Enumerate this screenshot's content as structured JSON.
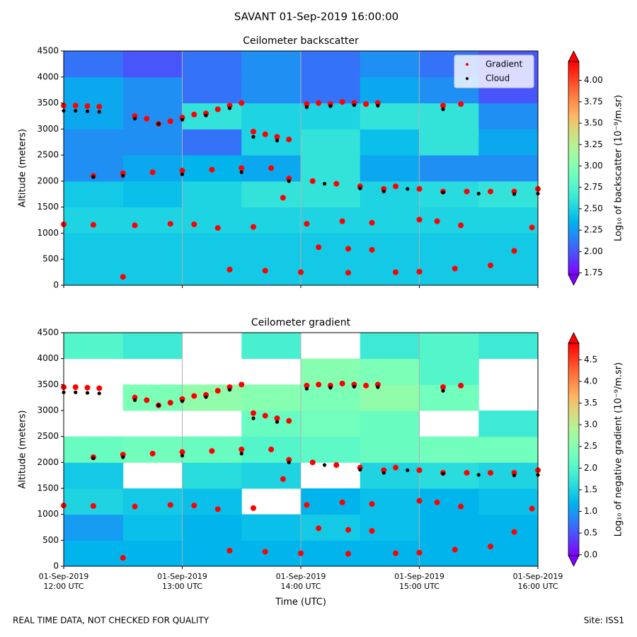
{
  "suptitle": "SAVANT 01-Sep-2019 16:00:00",
  "footer_left": "REAL TIME DATA, NOT CHECKED FOR QUALITY",
  "footer_right": "Site: ISS1",
  "chart_data": [
    {
      "type": "heatmap",
      "title": "Ceilometer backscatter",
      "ylabel": "Altitude (meters)",
      "colorbar_label": "Log₁₀ of backscatter (10⁻⁹/m.sr)",
      "xlim": [
        12,
        16
      ],
      "xticks": [
        12,
        13,
        14,
        15,
        16
      ],
      "ylim": [
        0,
        4500
      ],
      "yticks": [
        0,
        500,
        1000,
        1500,
        2000,
        2500,
        3000,
        3500,
        4000,
        4500
      ],
      "clim": [
        1.73,
        4.22
      ],
      "cticks": [
        {
          "value": 1.75,
          "label": "1.75"
        },
        {
          "value": 2.0,
          "label": "2.00"
        },
        {
          "value": 2.25,
          "label": "2.25"
        },
        {
          "value": 2.5,
          "label": "2.50"
        },
        {
          "value": 2.75,
          "label": "2.75"
        },
        {
          "value": 3.0,
          "label": "3.00"
        },
        {
          "value": 3.25,
          "label": "3.25"
        },
        {
          "value": 3.5,
          "label": "3.50"
        },
        {
          "value": 3.75,
          "label": "3.75"
        },
        {
          "value": 4.0,
          "label": "4.00"
        }
      ],
      "colormap": "rainbow",
      "legend": "upper right",
      "z_x": [
        12,
        12.5,
        13,
        13.5,
        14,
        14.5,
        15,
        15.5,
        16
      ],
      "z_y": [
        0,
        500,
        1000,
        1500,
        2000,
        2500,
        3000,
        3500,
        4000,
        4500
      ],
      "z": [
        [
          2.45,
          2.45,
          2.45,
          2.45,
          2.45,
          2.45,
          2.45,
          2.45
        ],
        [
          2.45,
          2.45,
          2.45,
          2.45,
          2.45,
          2.45,
          2.45,
          2.45
        ],
        [
          2.5,
          2.5,
          2.5,
          2.5,
          2.5,
          2.5,
          2.5,
          2.5
        ],
        [
          2.45,
          2.4,
          2.5,
          2.6,
          2.6,
          2.5,
          2.55,
          2.6
        ],
        [
          2.2,
          2.3,
          2.35,
          2.3,
          2.6,
          2.3,
          2.2,
          2.2
        ],
        [
          2.2,
          2.2,
          2.1,
          2.5,
          2.6,
          2.4,
          2.6,
          2.3
        ],
        [
          2.3,
          2.2,
          2.6,
          2.5,
          2.5,
          2.6,
          2.6,
          2.2
        ],
        [
          2.3,
          2.2,
          2.1,
          2.2,
          2.1,
          2.3,
          2.2,
          2.0
        ],
        [
          2.1,
          2.0,
          2.1,
          2.2,
          2.1,
          2.2,
          2.1,
          2.0
        ]
      ],
      "series": [
        {
          "name": "Gradient",
          "color": "#ff0000",
          "x": [
            12.0,
            12.1,
            12.2,
            12.3,
            12.6,
            12.7,
            12.8,
            12.9,
            13.0,
            13.1,
            13.2,
            13.3,
            13.4,
            13.5,
            13.6,
            13.7,
            13.8,
            13.9,
            14.05,
            14.15,
            14.25,
            14.35,
            14.45,
            14.55,
            14.65,
            15.2,
            15.35,
            12.25,
            12.5,
            12.75,
            13.0,
            13.25,
            13.5,
            13.75,
            13.9,
            14.1,
            14.3,
            14.5,
            14.7,
            14.8,
            15.0,
            15.2,
            15.4,
            15.6,
            15.8,
            16.0,
            12.0,
            12.25,
            12.6,
            12.9,
            13.1,
            13.3,
            13.6,
            13.85,
            14.05,
            14.35,
            14.6,
            15.0,
            15.15,
            15.35,
            15.95,
            12.5,
            13.4,
            13.7,
            14.0,
            14.4,
            14.8,
            15.0,
            15.3,
            15.6,
            14.15,
            14.4,
            14.6,
            15.8
          ],
          "values": [
            3450,
            3450,
            3440,
            3430,
            3250,
            3200,
            3100,
            3150,
            3220,
            3280,
            3300,
            3380,
            3450,
            3500,
            2950,
            2900,
            2850,
            2800,
            3480,
            3500,
            3480,
            3520,
            3500,
            3480,
            3500,
            3450,
            3480,
            2100,
            2150,
            2170,
            2200,
            2220,
            2250,
            2250,
            2050,
            2000,
            1950,
            1900,
            1850,
            1900,
            1850,
            1800,
            1800,
            1800,
            1800,
            1850,
            1170,
            1160,
            1150,
            1180,
            1170,
            1100,
            1120,
            1680,
            1180,
            1230,
            1200,
            1260,
            1230,
            1150,
            1110,
            160,
            300,
            280,
            250,
            240,
            250,
            260,
            320,
            380,
            730,
            700,
            680,
            660
          ]
        },
        {
          "name": "Cloud",
          "color": "#000000",
          "x": [
            12.0,
            12.1,
            12.2,
            12.3,
            12.6,
            12.8,
            13.0,
            13.2,
            13.4,
            13.6,
            13.8,
            14.05,
            14.25,
            14.45,
            14.65,
            15.2,
            12.25,
            12.5,
            13.0,
            13.5,
            13.9,
            14.2,
            14.5,
            14.7,
            14.9,
            15.2,
            15.5,
            15.8,
            16.0
          ],
          "values": [
            3350,
            3350,
            3340,
            3330,
            3200,
            3100,
            3180,
            3260,
            3400,
            2850,
            2780,
            3420,
            3440,
            3460,
            3450,
            3380,
            2080,
            2100,
            2130,
            2170,
            2000,
            1950,
            1860,
            1800,
            1850,
            1780,
            1760,
            1750,
            1760
          ]
        }
      ]
    },
    {
      "type": "heatmap",
      "title": "Ceilometer gradient",
      "ylabel": "Altitude (meters)",
      "xlabel": "Time (UTC)",
      "colorbar_label": "Log₁₀ of negative gradient (10⁻⁹/m.sr)",
      "xlim": [
        12,
        16
      ],
      "xticks": [
        {
          "value": 12,
          "label": "01-Sep-2019\n12:00 UTC"
        },
        {
          "value": 13,
          "label": "01-Sep-2019\n13:00 UTC"
        },
        {
          "value": 14,
          "label": "01-Sep-2019\n14:00 UTC"
        },
        {
          "value": 15,
          "label": "01-Sep-2019\n15:00 UTC"
        },
        {
          "value": 16,
          "label": "01-Sep-2019\n16:00 UTC"
        }
      ],
      "ylim": [
        0,
        4500
      ],
      "yticks": [
        0,
        500,
        1000,
        1500,
        2000,
        2500,
        3000,
        3500,
        4000,
        4500
      ],
      "clim": [
        -0.02,
        4.88
      ],
      "cticks": [
        {
          "value": 0,
          "label": "0.0"
        },
        0.5,
        {
          "value": 1,
          "label": "1.0"
        },
        1.5,
        {
          "value": 2,
          "label": "2.0"
        },
        2.5,
        {
          "value": 3,
          "label": "3.0"
        },
        3.5,
        {
          "value": 4,
          "label": "4.0"
        },
        4.5
      ],
      "colormap": "rainbow",
      "z_x": [
        12,
        12.5,
        13,
        13.5,
        14,
        14.5,
        15,
        15.5,
        16
      ],
      "z_y": [
        0,
        500,
        1000,
        1500,
        2000,
        2500,
        3000,
        3500,
        4000,
        4500
      ],
      "z": [
        [
          1.2,
          1.2,
          1.2,
          1.2,
          1.2,
          1.2,
          1.2,
          1.2
        ],
        [
          1.0,
          1.3,
          1.2,
          1.3,
          1.4,
          1.3,
          1.2,
          1.2
        ],
        [
          1.5,
          1.4,
          1.3,
          null,
          1.2,
          1.3,
          1.2,
          1.3
        ],
        [
          1.4,
          null,
          1.6,
          1.5,
          null,
          1.5,
          1.6,
          1.5
        ],
        [
          2.2,
          2.3,
          2.2,
          2.0,
          2.1,
          2.2,
          2.3,
          2.3
        ],
        [
          null,
          null,
          null,
          2.2,
          2.3,
          2.2,
          null,
          1.8
        ],
        [
          null,
          2.4,
          2.6,
          2.5,
          2.4,
          2.6,
          2.3,
          null
        ],
        [
          null,
          null,
          null,
          null,
          2.5,
          2.4,
          2.0,
          null
        ],
        [
          2.0,
          1.8,
          null,
          1.9,
          null,
          1.8,
          2.0,
          1.8
        ]
      ],
      "series": [
        {
          "name": "Gradient",
          "color": "#ff0000",
          "x": [
            12.0,
            12.1,
            12.2,
            12.3,
            12.6,
            12.7,
            12.8,
            12.9,
            13.0,
            13.1,
            13.2,
            13.3,
            13.4,
            13.5,
            13.6,
            13.7,
            13.8,
            13.9,
            14.05,
            14.15,
            14.25,
            14.35,
            14.45,
            14.55,
            14.65,
            15.2,
            15.35,
            12.25,
            12.5,
            12.75,
            13.0,
            13.25,
            13.5,
            13.75,
            13.9,
            14.1,
            14.3,
            14.5,
            14.7,
            14.8,
            15.0,
            15.2,
            15.4,
            15.6,
            15.8,
            16.0,
            12.0,
            12.25,
            12.6,
            12.9,
            13.1,
            13.3,
            13.6,
            13.85,
            14.05,
            14.35,
            14.6,
            15.0,
            15.15,
            15.35,
            15.95,
            12.5,
            13.4,
            13.7,
            14.0,
            14.4,
            14.8,
            15.0,
            15.3,
            15.6,
            14.15,
            14.4,
            14.6,
            15.8
          ],
          "values": [
            3450,
            3450,
            3440,
            3430,
            3250,
            3200,
            3100,
            3150,
            3220,
            3280,
            3300,
            3380,
            3450,
            3500,
            2950,
            2900,
            2850,
            2800,
            3480,
            3500,
            3480,
            3520,
            3500,
            3480,
            3500,
            3450,
            3480,
            2100,
            2150,
            2170,
            2200,
            2220,
            2250,
            2250,
            2050,
            2000,
            1950,
            1900,
            1850,
            1900,
            1850,
            1800,
            1800,
            1800,
            1800,
            1850,
            1170,
            1160,
            1150,
            1180,
            1170,
            1100,
            1120,
            1680,
            1180,
            1230,
            1200,
            1260,
            1230,
            1150,
            1110,
            160,
            300,
            280,
            250,
            240,
            250,
            260,
            320,
            380,
            730,
            700,
            680,
            660
          ]
        },
        {
          "name": "Cloud",
          "color": "#000000",
          "x": [
            12.0,
            12.1,
            12.2,
            12.3,
            12.6,
            12.8,
            13.0,
            13.2,
            13.4,
            13.6,
            13.8,
            14.05,
            14.25,
            14.45,
            14.65,
            15.2,
            12.25,
            12.5,
            13.0,
            13.5,
            13.9,
            14.2,
            14.5,
            14.7,
            14.9,
            15.2,
            15.5,
            15.8,
            16.0
          ],
          "values": [
            3350,
            3350,
            3340,
            3330,
            3200,
            3100,
            3180,
            3260,
            3400,
            2850,
            2780,
            3420,
            3440,
            3460,
            3450,
            3380,
            2080,
            2100,
            2130,
            2170,
            2000,
            1950,
            1860,
            1800,
            1850,
            1780,
            1760,
            1750,
            1760
          ]
        }
      ]
    }
  ]
}
